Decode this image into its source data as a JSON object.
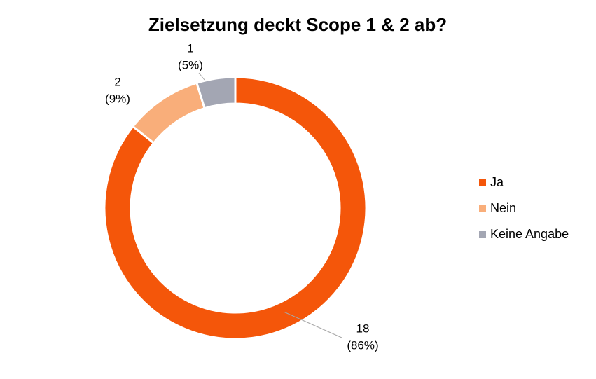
{
  "chart_data": {
    "type": "donut",
    "title": "Zielsetzung deckt Scope 1 & 2 ab?",
    "categories": [
      "Ja",
      "Nein",
      "Keine Angabe"
    ],
    "values": [
      18,
      2,
      1
    ],
    "percent_labels": [
      "(86%)",
      "(9%)",
      "(5%)"
    ],
    "colors": [
      "#f4560a",
      "#f9ae7a",
      "#a3a6b3"
    ],
    "legend": "right"
  }
}
